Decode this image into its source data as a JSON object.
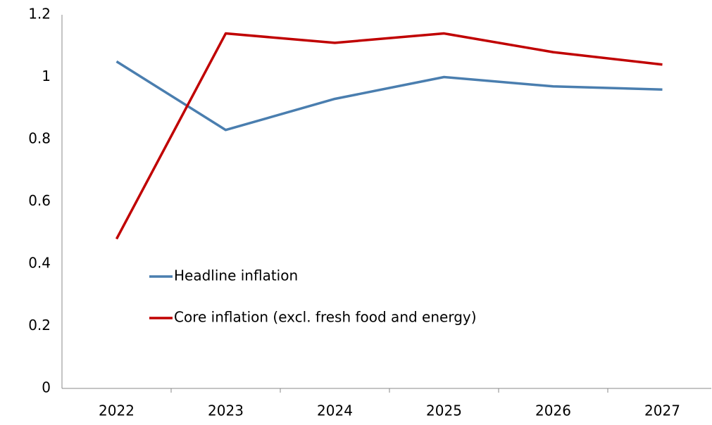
{
  "chart_data": {
    "type": "line",
    "categories": [
      "2022",
      "2023",
      "2024",
      "2025",
      "2026",
      "2027"
    ],
    "series": [
      {
        "name": "Headline inflation",
        "color": "#4a7eaf",
        "values": [
          1.05,
          0.83,
          0.93,
          1.0,
          0.97,
          0.96
        ]
      },
      {
        "name": "Core inflation (excl. fresh food and energy)",
        "color": "#c00000",
        "values": [
          0.48,
          1.14,
          1.11,
          1.14,
          1.08,
          1.04
        ]
      }
    ],
    "ylim": [
      0,
      1.2
    ],
    "yticks": [
      0,
      0.2,
      0.4,
      0.6,
      0.8,
      1,
      1.2
    ],
    "grid": false,
    "legend": "center-left"
  }
}
